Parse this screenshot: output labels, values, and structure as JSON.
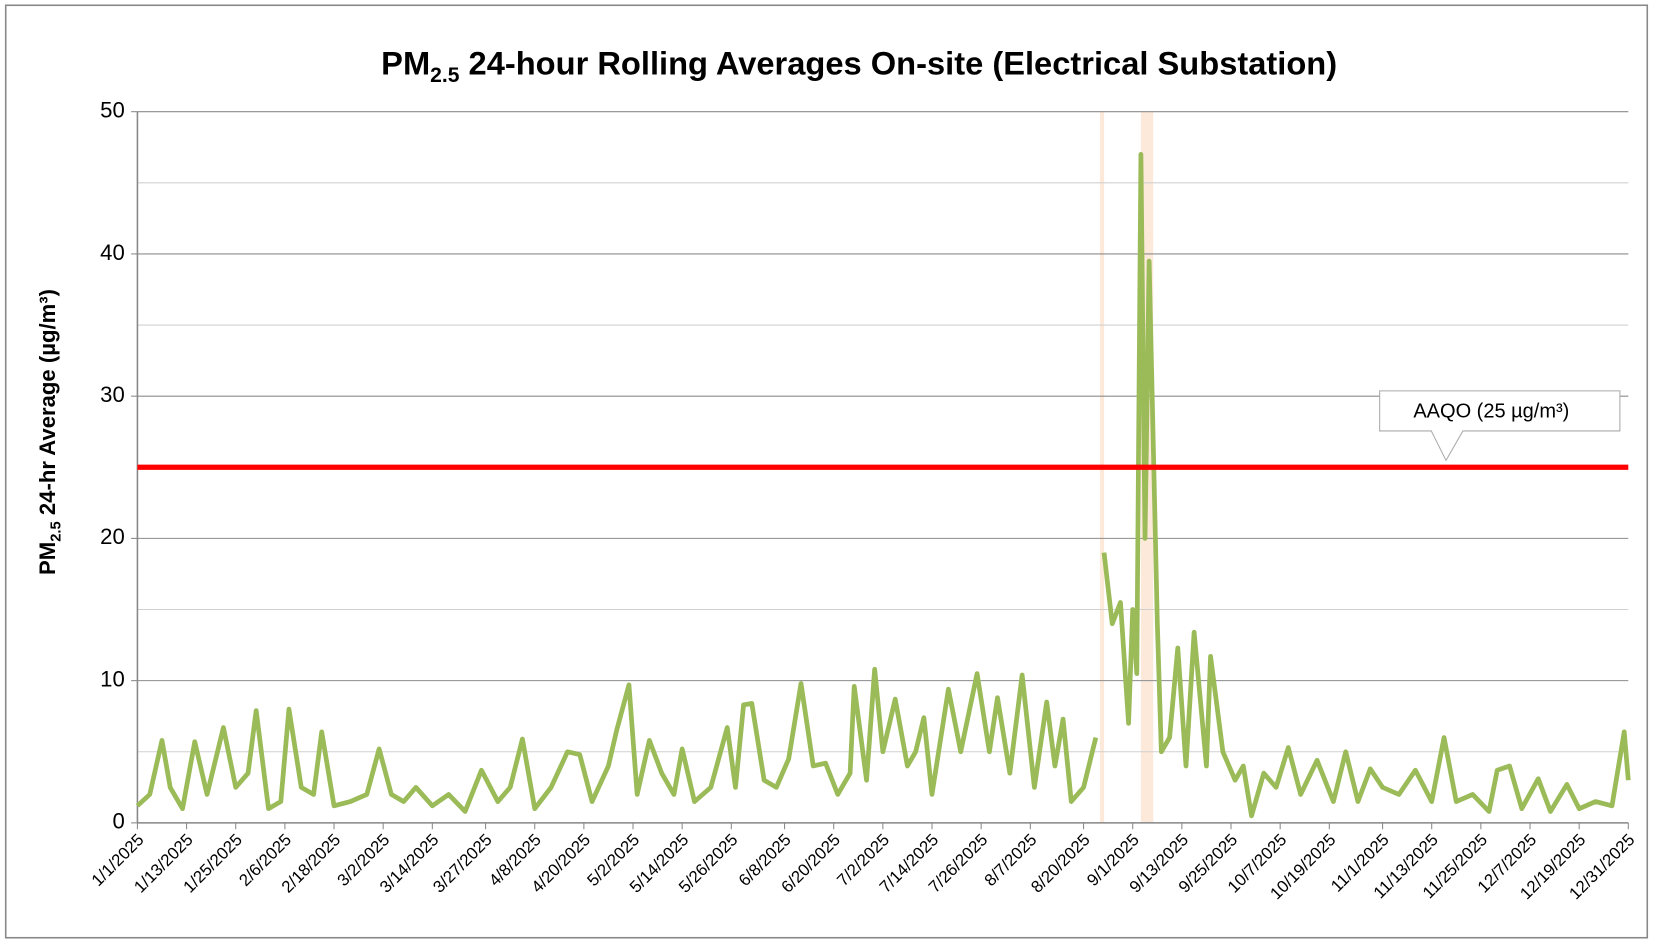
{
  "chart_data": {
    "type": "line",
    "title": {
      "main": "PM",
      "sub": "2.5",
      "rest": " 24-hour Rolling Averages On-site (Electrical Substation)"
    },
    "y_label": {
      "main": "PM",
      "sub": "2.5",
      "rest": " 24-hr Average (µg/m³)"
    },
    "ylim": [
      0,
      50
    ],
    "yticks": [
      0,
      10,
      20,
      30,
      40,
      50
    ],
    "yminor": [
      5,
      15,
      25,
      35,
      45
    ],
    "grid": true,
    "xlim": [
      "1/1/2025",
      "12/31/2025"
    ],
    "xticks": [
      "1/1/2025",
      "1/13/2025",
      "1/25/2025",
      "2/6/2025",
      "2/18/2025",
      "3/2/2025",
      "3/14/2025",
      "3/27/2025",
      "4/8/2025",
      "4/20/2025",
      "5/2/2025",
      "5/14/2025",
      "5/26/2025",
      "6/8/2025",
      "6/20/2025",
      "7/2/2025",
      "7/14/2025",
      "7/26/2025",
      "8/7/2025",
      "8/20/2025",
      "9/1/2025",
      "9/13/2025",
      "9/25/2025",
      "10/7/2025",
      "10/19/2025",
      "11/1/2025",
      "11/13/2025",
      "11/25/2025",
      "12/7/2025",
      "12/19/2025",
      "12/31/2025"
    ],
    "x": [
      "1/1/2025",
      "1/4/2025",
      "1/7/2025",
      "1/9/2025",
      "1/12/2025",
      "1/15/2025",
      "1/18/2025",
      "1/22/2025",
      "1/25/2025",
      "1/28/2025",
      "1/30/2025",
      "2/2/2025",
      "2/5/2025",
      "2/7/2025",
      "2/10/2025",
      "2/13/2025",
      "2/15/2025",
      "2/18/2025",
      "2/22/2025",
      "2/26/2025",
      "3/1/2025",
      "3/4/2025",
      "3/7/2025",
      "3/10/2025",
      "3/14/2025",
      "3/18/2025",
      "3/22/2025",
      "3/26/2025",
      "3/30/2025",
      "4/2/2025",
      "4/5/2025",
      "4/8/2025",
      "4/12/2025",
      "4/16/2025",
      "4/19/2025",
      "4/22/2025",
      "4/26/2025",
      "4/28/2025",
      "5/1/2025",
      "5/3/2025",
      "5/6/2025",
      "5/9/2025",
      "5/12/2025",
      "5/14/2025",
      "5/17/2025",
      "5/21/2025",
      "5/25/2025",
      "5/27/2025",
      "5/29/2025",
      "5/31/2025",
      "6/3/2025",
      "6/6/2025",
      "6/9/2025",
      "6/12/2025",
      "6/15/2025",
      "6/18/2025",
      "6/21/2025",
      "6/24/2025",
      "6/25/2025",
      "6/28/2025",
      "6/30/2025",
      "7/2/2025",
      "7/5/2025",
      "7/8/2025",
      "7/10/2025",
      "7/12/2025",
      "7/14/2025",
      "7/18/2025",
      "7/21/2025",
      "7/25/2025",
      "7/28/2025",
      "7/30/2025",
      "8/2/2025",
      "8/5/2025",
      "8/8/2025",
      "8/11/2025",
      "8/13/2025",
      "8/15/2025",
      "8/17/2025",
      "8/20/2025",
      "8/23/2025",
      "8/24/2025",
      "8/25/2025",
      "8/27/2025",
      "8/29/2025",
      "8/31/2025",
      "9/1/2025",
      "9/2/2025",
      "9/3/2025",
      "9/4/2025",
      "9/5/2025",
      "9/7/2025",
      "9/8/2025",
      "9/10/2025",
      "9/12/2025",
      "9/14/2025",
      "9/16/2025",
      "9/19/2025",
      "9/20/2025",
      "9/23/2025",
      "9/26/2025",
      "9/28/2025",
      "9/30/2025",
      "10/3/2025",
      "10/6/2025",
      "10/9/2025",
      "10/12/2025",
      "10/16/2025",
      "10/20/2025",
      "10/23/2025",
      "10/26/2025",
      "10/29/2025",
      "11/1/2025",
      "11/5/2025",
      "11/9/2025",
      "11/13/2025",
      "11/16/2025",
      "11/19/2025",
      "11/23/2025",
      "11/27/2025",
      "11/29/2025",
      "12/2/2025",
      "12/5/2025",
      "12/9/2025",
      "12/12/2025",
      "12/16/2025",
      "12/19/2025",
      "12/23/2025",
      "12/27/2025",
      "12/30/2025",
      "12/31/2025"
    ],
    "series": [
      {
        "name": "PM2.5",
        "color": "#9bbb59",
        "values": [
          1.2,
          2,
          5.8,
          2.5,
          1,
          5.7,
          2,
          6.7,
          2.5,
          3.5,
          7.9,
          1,
          1.5,
          8,
          2.5,
          2,
          6.4,
          1.2,
          1.5,
          2,
          5.2,
          2,
          1.5,
          2.5,
          1.2,
          2,
          0.8,
          3.7,
          1.5,
          2.5,
          5.9,
          1,
          2.5,
          5,
          4.8,
          1.5,
          4,
          6.5,
          9.7,
          2,
          5.8,
          3.5,
          2,
          5.2,
          1.5,
          2.5,
          6.7,
          2.5,
          8.3,
          8.4,
          3,
          2.5,
          4.5,
          9.8,
          4,
          4.2,
          2,
          3.5,
          9.6,
          3,
          10.8,
          5,
          8.7,
          4,
          5,
          7.4,
          2,
          9.4,
          5,
          10.5,
          5,
          8.8,
          3.5,
          10.4,
          2.5,
          8.5,
          4,
          7.3,
          1.5,
          2.5,
          6,
          null,
          19,
          14,
          15.5,
          7,
          15,
          10.5,
          47,
          20,
          39.5,
          14,
          5,
          6,
          12.3,
          4,
          13.4,
          4,
          11.7,
          5,
          3,
          4,
          0.5,
          3.5,
          2.5,
          5.3,
          2,
          4.4,
          1.5,
          5,
          1.5,
          3.8,
          2.5,
          2,
          3.7,
          1.5,
          6,
          1.5,
          2,
          0.8,
          3.7,
          4,
          1,
          3.1,
          0.8,
          2.7,
          1,
          1.5,
          1.2,
          6.4,
          3
        ]
      }
    ],
    "threshold": {
      "value": 25,
      "color": "#ff0000",
      "label": "AAQO (25 µg/m³)"
    },
    "highlights": [
      {
        "from": "8/24/2025",
        "to": "8/25/2025"
      },
      {
        "from": "9/3/2025",
        "to": "9/6/2025"
      }
    ],
    "highlight_color": "#fde9d9"
  }
}
